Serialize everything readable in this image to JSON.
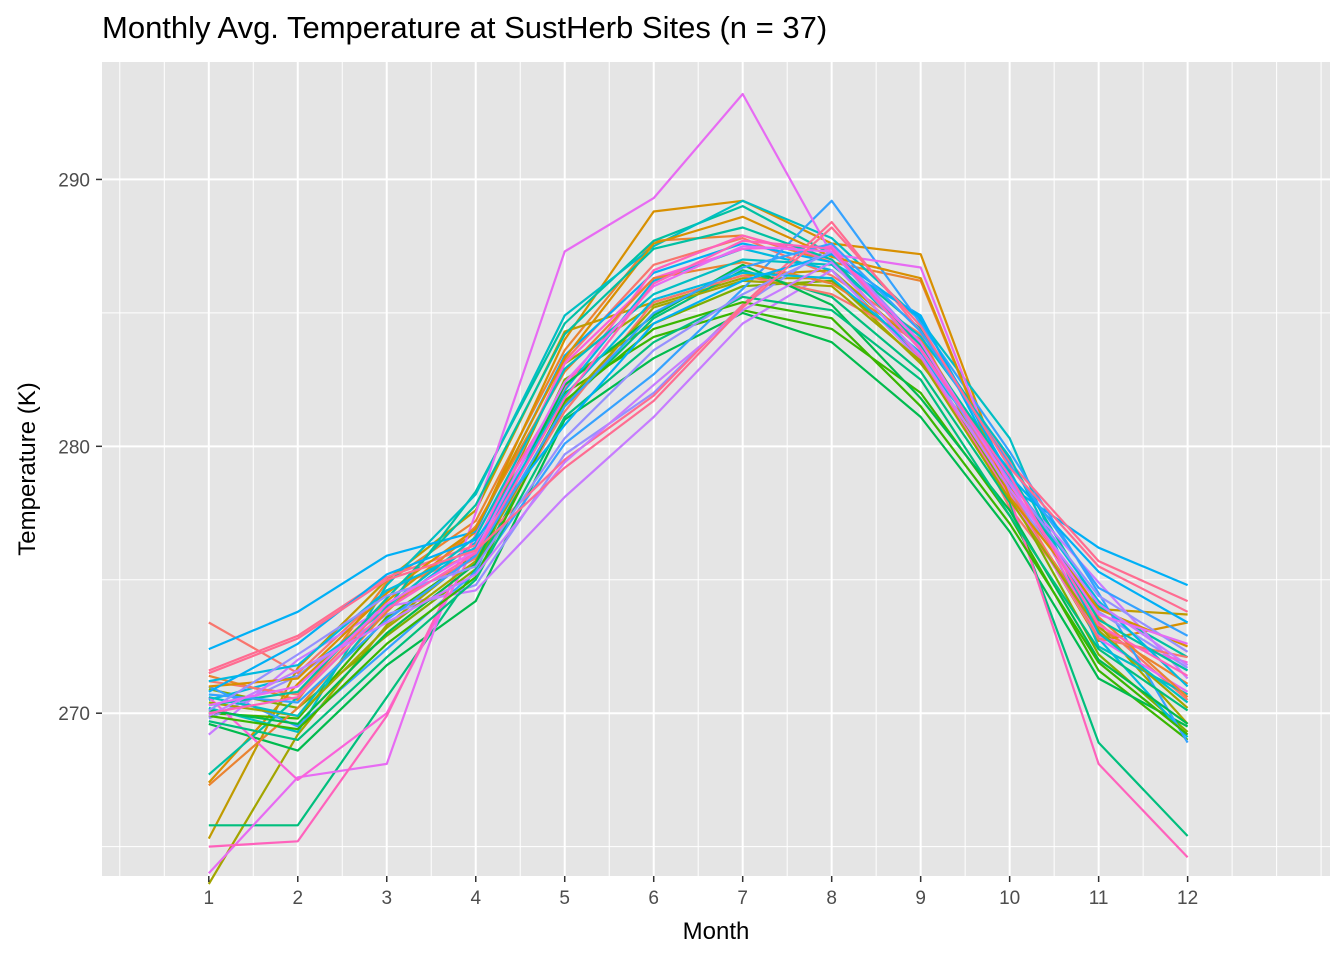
{
  "chart_data": {
    "type": "line",
    "title": "Monthly Avg. Temperature at SustHerb Sites (n = 37)",
    "xlabel": "Month",
    "ylabel": "Temperature (K)",
    "x": [
      1,
      2,
      3,
      4,
      5,
      6,
      7,
      8,
      9,
      10,
      11,
      12
    ],
    "x_ticks": [
      "1",
      "2",
      "3",
      "4",
      "5",
      "6",
      "7",
      "8",
      "9",
      "10",
      "11",
      "12"
    ],
    "xlim": [
      -0.2,
      13.6
    ],
    "y_ticks": [
      270,
      280,
      290
    ],
    "ylim": [
      263.9,
      294.4
    ],
    "grid": true,
    "legend": "none",
    "background": "#e5e5e5",
    "series": [
      {
        "color": "#F8766D",
        "values": [
          273.4,
          271.5,
          274.6,
          276.0,
          283.2,
          286.8,
          287.8,
          286.4,
          284.2,
          277.7,
          273.4,
          270.5
        ]
      },
      {
        "color": "#EA8331",
        "values": [
          271.4,
          270.5,
          274.9,
          277.2,
          283.6,
          287.7,
          287.9,
          286.9,
          286.2,
          278.1,
          273.2,
          271.1
        ]
      },
      {
        "color": "#D89000",
        "values": [
          267.4,
          271.1,
          274.2,
          276.8,
          284.0,
          288.8,
          289.2,
          287.6,
          287.2,
          278.3,
          272.7,
          273.4
        ]
      },
      {
        "color": "#C09B00",
        "values": [
          265.3,
          271.7,
          275.0,
          277.6,
          284.3,
          285.4,
          286.4,
          286.6,
          283.7,
          278.5,
          273.9,
          273.7
        ]
      },
      {
        "color": "#A3A500",
        "values": [
          263.6,
          269.2,
          273.3,
          276.0,
          283.1,
          285.3,
          286.3,
          286.3,
          283.1,
          278.9,
          273.3,
          269.6
        ]
      },
      {
        "color": "#7CAE00",
        "values": [
          270.9,
          270.2,
          272.9,
          275.4,
          282.5,
          284.6,
          286.0,
          286.2,
          283.5,
          278.2,
          272.2,
          269.3
        ]
      },
      {
        "color": "#39B600",
        "values": [
          270.0,
          269.8,
          273.6,
          275.9,
          282.0,
          284.1,
          285.1,
          284.4,
          282.0,
          277.4,
          271.6,
          269.0
        ]
      },
      {
        "color": "#00BB4E",
        "values": [
          269.6,
          268.6,
          271.8,
          274.2,
          281.0,
          283.3,
          285.0,
          283.9,
          281.1,
          276.8,
          271.3,
          269.5
        ]
      },
      {
        "color": "#00BF7D",
        "values": [
          265.8,
          265.8,
          270.6,
          275.4,
          281.5,
          284.8,
          286.6,
          285.6,
          282.8,
          277.9,
          268.9,
          265.4
        ]
      },
      {
        "color": "#00C1A3",
        "values": [
          267.7,
          270.6,
          273.9,
          278.3,
          284.6,
          287.7,
          289.0,
          287.2,
          284.4,
          279.5,
          274.0,
          272.1
        ]
      },
      {
        "color": "#00BFC4",
        "values": [
          270.2,
          269.3,
          274.8,
          278.2,
          284.9,
          287.5,
          289.2,
          287.8,
          284.7,
          280.3,
          272.5,
          270.7
        ]
      },
      {
        "color": "#00BAE0",
        "values": [
          270.5,
          271.4,
          273.9,
          276.4,
          282.1,
          286.2,
          287.4,
          286.6,
          283.3,
          279.1,
          272.8,
          269.1
        ]
      },
      {
        "color": "#00B0F6",
        "values": [
          272.4,
          273.8,
          275.9,
          276.8,
          283.4,
          286.5,
          287.6,
          286.9,
          284.9,
          278.5,
          276.2,
          274.8
        ]
      },
      {
        "color": "#35A2FF",
        "values": [
          271.0,
          269.5,
          272.4,
          275.3,
          280.1,
          282.7,
          285.9,
          289.2,
          284.6,
          279.8,
          274.5,
          268.9
        ]
      },
      {
        "color": "#9590FF",
        "values": [
          269.8,
          271.4,
          273.7,
          274.8,
          279.7,
          282.0,
          285.3,
          287.5,
          283.9,
          278.3,
          273.8,
          271.7
        ]
      },
      {
        "color": "#C77CFF",
        "values": [
          269.2,
          272.0,
          274.0,
          274.6,
          278.1,
          281.1,
          284.6,
          286.6,
          283.2,
          278.6,
          274.9,
          271.3
        ]
      },
      {
        "color": "#E76BF3",
        "values": [
          264.0,
          267.6,
          268.1,
          277.5,
          287.3,
          289.3,
          293.2,
          287.2,
          286.7,
          278.2,
          272.8,
          270.8
        ]
      },
      {
        "color": "#FA62DB",
        "values": [
          270.6,
          267.5,
          270.0,
          276.3,
          283.1,
          286.3,
          287.4,
          287.5,
          283.7,
          279.0,
          272.9,
          271.9
        ]
      },
      {
        "color": "#FF62BC",
        "values": [
          265.0,
          265.2,
          269.9,
          276.7,
          282.2,
          286.6,
          287.9,
          287.0,
          283.3,
          278.1,
          268.1,
          264.6
        ]
      },
      {
        "color": "#FF6C91",
        "values": [
          271.6,
          272.9,
          275.1,
          276.3,
          279.5,
          281.9,
          285.3,
          288.4,
          284.3,
          279.4,
          275.7,
          274.2
        ]
      },
      {
        "color": "#F8766D",
        "values": [
          271.2,
          270.7,
          274.1,
          275.8,
          281.3,
          285.4,
          286.4,
          285.7,
          283.9,
          278.4,
          272.8,
          272.1
        ]
      },
      {
        "color": "#EA8331",
        "values": [
          267.3,
          270.2,
          273.8,
          277.0,
          282.8,
          286.3,
          286.9,
          286.1,
          284.0,
          278.6,
          273.6,
          270.6
        ]
      },
      {
        "color": "#D89000",
        "values": [
          271.0,
          271.3,
          274.5,
          276.9,
          283.3,
          287.6,
          288.6,
          287.1,
          286.3,
          278.1,
          273.9,
          272.5
        ]
      },
      {
        "color": "#A3A500",
        "values": [
          270.4,
          269.9,
          273.2,
          275.7,
          281.6,
          285.2,
          286.2,
          286.0,
          283.2,
          278.0,
          273.1,
          270.2
        ]
      },
      {
        "color": "#39B600",
        "values": [
          269.9,
          269.4,
          272.6,
          275.1,
          281.7,
          284.4,
          285.4,
          284.8,
          281.5,
          277.1,
          271.9,
          269.2
        ]
      },
      {
        "color": "#00BB4E",
        "values": [
          270.1,
          269.6,
          273.0,
          275.6,
          282.3,
          284.9,
          286.8,
          285.3,
          281.8,
          277.6,
          272.0,
          269.6
        ]
      },
      {
        "color": "#00BF7D",
        "values": [
          269.7,
          269.0,
          272.1,
          275.0,
          281.1,
          283.9,
          285.6,
          285.1,
          282.5,
          277.4,
          272.4,
          270.1
        ]
      },
      {
        "color": "#00C1A3",
        "values": [
          270.3,
          270.8,
          274.3,
          277.8,
          284.2,
          287.4,
          288.2,
          287.0,
          283.8,
          279.0,
          273.5,
          271.6
        ]
      },
      {
        "color": "#00BFC4",
        "values": [
          270.6,
          269.9,
          274.0,
          276.6,
          282.9,
          285.7,
          287.0,
          286.8,
          284.1,
          279.6,
          273.0,
          270.4
        ]
      },
      {
        "color": "#00BAE0",
        "values": [
          271.2,
          271.8,
          274.6,
          276.2,
          281.9,
          285.5,
          286.5,
          286.3,
          283.5,
          278.8,
          274.2,
          271.0
        ]
      },
      {
        "color": "#00B0F6",
        "values": [
          270.8,
          272.6,
          275.2,
          276.5,
          280.8,
          284.6,
          286.2,
          287.2,
          284.8,
          278.9,
          275.3,
          273.4
        ]
      },
      {
        "color": "#35A2FF",
        "values": [
          270.7,
          270.4,
          273.5,
          275.9,
          281.5,
          285.0,
          286.7,
          287.6,
          284.3,
          279.3,
          274.7,
          272.9
        ]
      },
      {
        "color": "#9590FF",
        "values": [
          270.1,
          272.2,
          274.4,
          275.5,
          280.3,
          283.6,
          285.7,
          287.3,
          283.6,
          278.7,
          274.4,
          272.3
        ]
      },
      {
        "color": "#C77CFF",
        "values": [
          269.9,
          271.6,
          273.4,
          275.2,
          279.4,
          282.3,
          285.1,
          286.9,
          283.4,
          278.4,
          274.1,
          271.8
        ]
      },
      {
        "color": "#E76BF3",
        "values": [
          270.3,
          271.0,
          274.1,
          276.1,
          282.4,
          286.0,
          287.5,
          287.3,
          283.9,
          278.6,
          273.7,
          272.6
        ]
      },
      {
        "color": "#FF62BC",
        "values": [
          270.0,
          270.6,
          273.9,
          276.0,
          281.8,
          286.1,
          287.7,
          287.4,
          283.6,
          278.9,
          273.3,
          271.4
        ]
      },
      {
        "color": "#FF6C91",
        "values": [
          271.5,
          272.8,
          275.0,
          276.1,
          279.2,
          281.7,
          285.2,
          288.2,
          284.5,
          279.2,
          275.5,
          273.8
        ]
      }
    ]
  }
}
